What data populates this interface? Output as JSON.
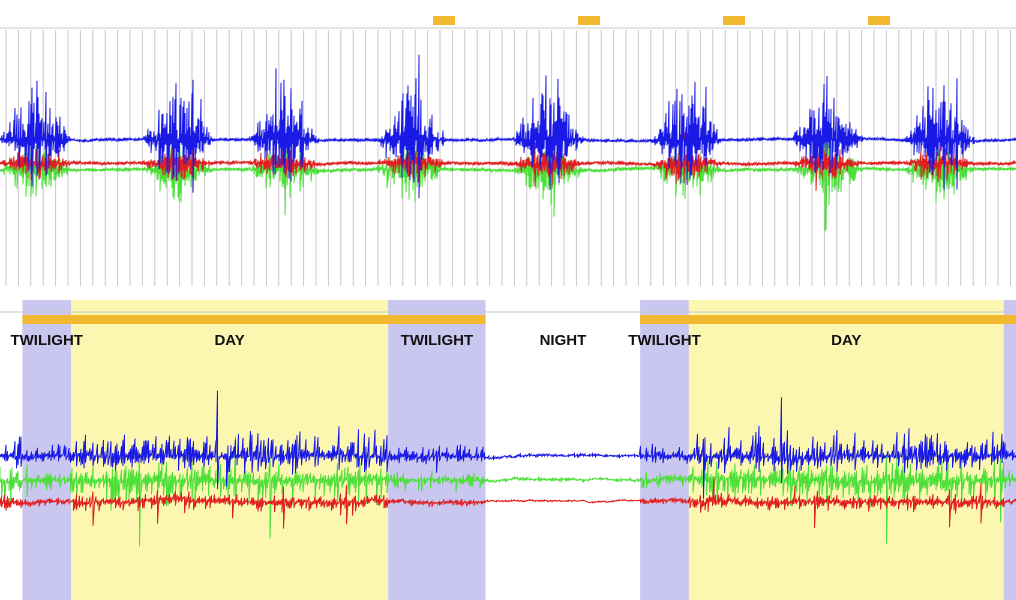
{
  "colors": {
    "twilight_band": "#c9c6ef",
    "day_band": "#fbf6b0",
    "night_band": "#ffffff",
    "marker": "#f2b830",
    "gridline": "#c8c8c8",
    "blue_series": "#1a1ae6",
    "red_series": "#e02020",
    "green_series": "#4ddf3a"
  },
  "chart_data": [
    {
      "type": "line",
      "panel": "top",
      "title": "",
      "xlabel": "",
      "ylabel": "",
      "grid": "vertical gridlines on",
      "legend": "none",
      "markers": "short orange bars along top edge",
      "bursts": [
        0.035,
        0.175,
        0.28,
        0.405,
        0.54,
        0.675,
        0.815,
        0.925
      ],
      "series": [
        {
          "color_key": "blue_series",
          "baseline": 0.43,
          "amplitude": 0.25
        },
        {
          "color_key": "red_series",
          "baseline": 0.52,
          "amplitude": 0.06
        },
        {
          "color_key": "green_series",
          "baseline": 0.545,
          "amplitude": 0.1
        }
      ]
    },
    {
      "type": "line",
      "panel": "bottom",
      "title": "",
      "xlabel": "",
      "ylabel": "",
      "grid": "off",
      "legend": "none",
      "periods": [
        {
          "label": "TWILIGHT",
          "type": "twilight",
          "start": 0.022,
          "end": 0.07
        },
        {
          "label": "DAY",
          "type": "day",
          "start": 0.07,
          "end": 0.382
        },
        {
          "label": "TWILIGHT",
          "type": "twilight",
          "start": 0.382,
          "end": 0.478
        },
        {
          "label": "NIGHT",
          "type": "night",
          "start": 0.478,
          "end": 0.63
        },
        {
          "label": "TWILIGHT",
          "type": "twilight",
          "start": 0.63,
          "end": 0.678
        },
        {
          "label": "DAY",
          "type": "day",
          "start": 0.678,
          "end": 0.988
        },
        {
          "label": "",
          "type": "twilight",
          "start": 0.988,
          "end": 1.0
        }
      ],
      "series": [
        {
          "color_key": "blue_series",
          "baseline": 0.6,
          "amplitude": 0.35
        },
        {
          "color_key": "red_series",
          "baseline": 0.79,
          "amplitude": 0.08
        },
        {
          "color_key": "green_series",
          "baseline": 0.7,
          "amplitude": 0.25
        }
      ]
    }
  ]
}
